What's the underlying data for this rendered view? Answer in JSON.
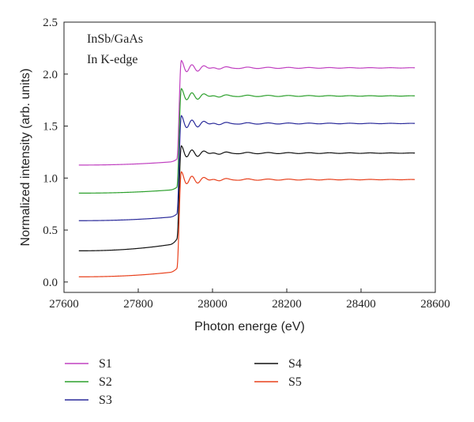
{
  "chart_data": {
    "type": "line",
    "title": "",
    "xlabel": "Photon energe (eV)",
    "ylabel": "Normalized intensity (arb. units)",
    "xlim": [
      27600,
      28600
    ],
    "ylim": [
      -0.1,
      2.5
    ],
    "xticks": [
      27600,
      27800,
      28000,
      28200,
      28400,
      28600
    ],
    "yticks": [
      0.0,
      0.5,
      1.0,
      1.5,
      2.0,
      2.5
    ],
    "xtick_labels": [
      "27600",
      "27800",
      "28000",
      "28200",
      "28400",
      "28600"
    ],
    "ytick_labels": [
      "0.0",
      "0.5",
      "1.0",
      "1.5",
      "2.0",
      "2.5"
    ],
    "annotations": [
      "InSb/GaAs",
      "In K-edge"
    ],
    "legend_position": "bottom",
    "grid": false,
    "x_range": [
      27640,
      28545
    ],
    "edge_energy": 27910,
    "series": [
      {
        "name": "S1",
        "color": "#c040c0",
        "pre_edge": [
          1.125,
          1.16
        ],
        "white_line": 2.13,
        "post_edge": 2.06
      },
      {
        "name": "S2",
        "color": "#2ca02c",
        "pre_edge": [
          0.855,
          0.89
        ],
        "white_line": 1.86,
        "post_edge": 1.79
      },
      {
        "name": "S3",
        "color": "#2a2a9a",
        "pre_edge": [
          0.59,
          0.63
        ],
        "white_line": 1.6,
        "post_edge": 1.525
      },
      {
        "name": "S4",
        "color": "#111111",
        "pre_edge": [
          0.3,
          0.37
        ],
        "white_line": 1.31,
        "post_edge": 1.24
      },
      {
        "name": "S5",
        "color": "#e8401c",
        "pre_edge": [
          0.05,
          0.1
        ],
        "white_line": 1.06,
        "post_edge": 0.985
      }
    ]
  }
}
